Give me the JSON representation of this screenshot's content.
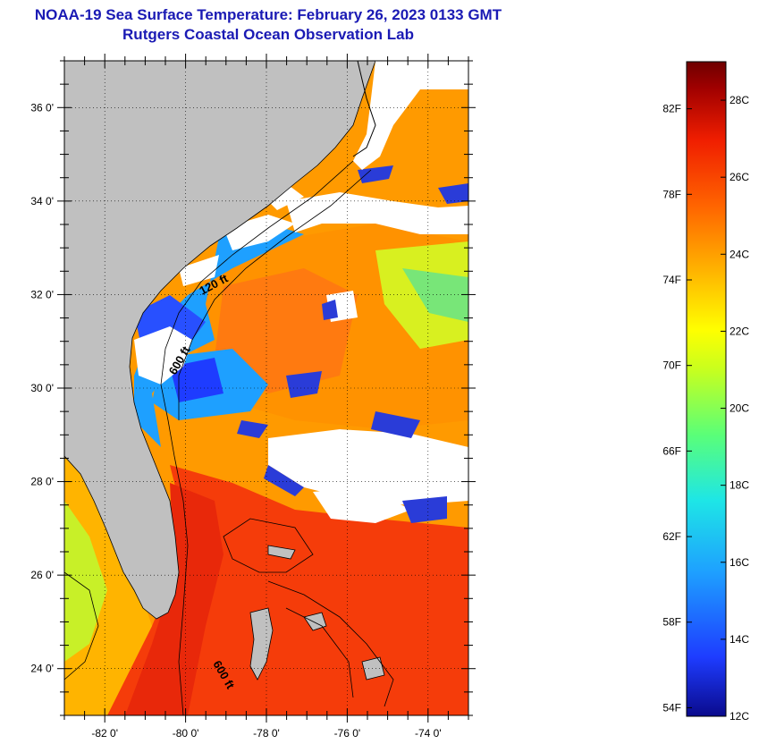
{
  "title": {
    "line1": "NOAA-19 Sea Surface Temperature:  February 26, 2023 0133 GMT",
    "line2": "Rutgers Coastal Ocean Observation Lab"
  },
  "map": {
    "lon_ticks": [
      "-82 0'",
      "-80 0'",
      "-78 0'",
      "-76 0'",
      "-74 0'"
    ],
    "lat_ticks": [
      "36 0'",
      "34 0'",
      "32 0'",
      "30 0'",
      "28 0'",
      "26 0'",
      "24 0'"
    ],
    "lon_range": [
      -83,
      -73
    ],
    "lat_range": [
      23,
      37
    ],
    "contour_labels": [
      "120 ft",
      "600 ft",
      "600 ft"
    ]
  },
  "colorbar": {
    "fahrenheit_labels": [
      "82F",
      "78F",
      "74F",
      "70F",
      "66F",
      "62F",
      "58F",
      "54F"
    ],
    "celsius_labels": [
      "28C",
      "26C",
      "24C",
      "22C",
      "20C",
      "18C",
      "16C",
      "14C",
      "12C"
    ],
    "range_celsius": [
      12,
      29
    ],
    "colors": [
      "#0a0a8c",
      "#1e3cff",
      "#1ea0ff",
      "#1ee6e6",
      "#5aff78",
      "#c8ff1e",
      "#ffff00",
      "#ffb400",
      "#ff6400",
      "#f01e00",
      "#a00000",
      "#6e0000"
    ]
  },
  "colors": {
    "land": "#c0c0c0",
    "cloud": "#ffffff",
    "title": "#1a1ab4"
  }
}
